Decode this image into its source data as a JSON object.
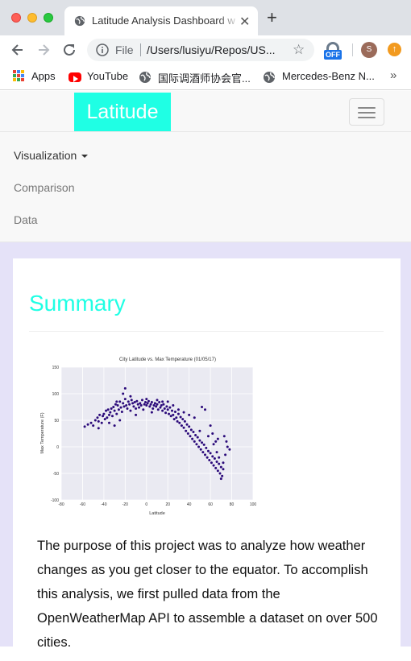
{
  "browser": {
    "tab_title": "Latitude Analysis Dashboard w",
    "url_scheme": "File",
    "url": "/Users/lusiyu/Repos/US...",
    "extension_badge": "OFF",
    "profile_initial": "S",
    "bookmarks": [
      {
        "label": "Apps",
        "icon": "apps-grid-icon"
      },
      {
        "label": "YouTube",
        "icon": "youtube-icon"
      },
      {
        "label": "国际调酒师协会官...",
        "icon": "globe-icon"
      },
      {
        "label": "Mercedes-Benz N...",
        "icon": "globe-icon"
      }
    ],
    "more_bookmarks": "»"
  },
  "navbar": {
    "brand": "Latitude",
    "items": [
      {
        "label": "Visualization",
        "has_dropdown": true
      },
      {
        "label": "Comparison"
      },
      {
        "label": "Data"
      }
    ]
  },
  "main": {
    "heading": "Summary",
    "description": "The purpose of this project was to analyze how weather changes as you get closer to the equator. To accomplish this analysis, we first pulled data from the OpenWeatherMap API to assemble a dataset on over 500 cities."
  },
  "chart_data": {
    "type": "scatter",
    "title": "City Latitude vs. Max Temperature (01/05/17)",
    "xlabel": "Latitude",
    "ylabel": "Max Temperature (F)",
    "xlim": [
      -80,
      100
    ],
    "ylim": [
      -100,
      150
    ],
    "xticks": [
      -80,
      -60,
      -40,
      -20,
      0,
      20,
      40,
      60,
      80,
      100
    ],
    "yticks": [
      -100,
      -50,
      0,
      50,
      100,
      150
    ],
    "grid": true,
    "point_color": "#2b0a7a",
    "plot_background": "#eaeaf2",
    "points_summary": "approximately 540 cities; temperatures near 80°F from -40 to 20 latitude, declining to about -60°F near latitude 70",
    "points": [
      [
        -58,
        38
      ],
      [
        -55,
        42
      ],
      [
        -52,
        45
      ],
      [
        -50,
        40
      ],
      [
        -48,
        50
      ],
      [
        -46,
        55
      ],
      [
        -45,
        48
      ],
      [
        -44,
        60
      ],
      [
        -42,
        45
      ],
      [
        -41,
        58
      ],
      [
        -40,
        62
      ],
      [
        -39,
        52
      ],
      [
        -38,
        68
      ],
      [
        -37,
        55
      ],
      [
        -36,
        70
      ],
      [
        -35,
        60
      ],
      [
        -34,
        65
      ],
      [
        -33,
        72
      ],
      [
        -32,
        58
      ],
      [
        -31,
        75
      ],
      [
        -30,
        68
      ],
      [
        -29,
        80
      ],
      [
        -28,
        62
      ],
      [
        -27,
        78
      ],
      [
        -26,
        70
      ],
      [
        -25,
        85
      ],
      [
        -24,
        74
      ],
      [
        -23,
        66
      ],
      [
        -22,
        82
      ],
      [
        -21,
        76
      ],
      [
        -20,
        90
      ],
      [
        -20,
        110
      ],
      [
        -19,
        78
      ],
      [
        -18,
        72
      ],
      [
        -17,
        85
      ],
      [
        -16,
        80
      ],
      [
        -15,
        68
      ],
      [
        -14,
        88
      ],
      [
        -13,
        82
      ],
      [
        -12,
        76
      ],
      [
        -11,
        84
      ],
      [
        -10,
        72
      ],
      [
        -9,
        86
      ],
      [
        -8,
        80
      ],
      [
        -7,
        74
      ],
      [
        -6,
        82
      ],
      [
        -5,
        78
      ],
      [
        -4,
        88
      ],
      [
        -3,
        70
      ],
      [
        -2,
        80
      ],
      [
        -1,
        84
      ],
      [
        0,
        78
      ],
      [
        1,
        82
      ],
      [
        2,
        86
      ],
      [
        3,
        76
      ],
      [
        4,
        80
      ],
      [
        5,
        84
      ],
      [
        6,
        72
      ],
      [
        7,
        78
      ],
      [
        8,
        82
      ],
      [
        9,
        76
      ],
      [
        10,
        80
      ],
      [
        11,
        70
      ],
      [
        12,
        84
      ],
      [
        13,
        74
      ],
      [
        14,
        78
      ],
      [
        15,
        68
      ],
      [
        16,
        80
      ],
      [
        17,
        72
      ],
      [
        18,
        64
      ],
      [
        19,
        76
      ],
      [
        20,
        70
      ],
      [
        21,
        62
      ],
      [
        22,
        74
      ],
      [
        23,
        58
      ],
      [
        24,
        68
      ],
      [
        25,
        60
      ],
      [
        26,
        52
      ],
      [
        27,
        66
      ],
      [
        28,
        55
      ],
      [
        29,
        48
      ],
      [
        30,
        62
      ],
      [
        31,
        45
      ],
      [
        32,
        56
      ],
      [
        33,
        40
      ],
      [
        34,
        52
      ],
      [
        35,
        36
      ],
      [
        36,
        48
      ],
      [
        37,
        30
      ],
      [
        38,
        42
      ],
      [
        39,
        25
      ],
      [
        40,
        38
      ],
      [
        41,
        20
      ],
      [
        42,
        32
      ],
      [
        43,
        15
      ],
      [
        44,
        28
      ],
      [
        45,
        10
      ],
      [
        46,
        22
      ],
      [
        47,
        5
      ],
      [
        48,
        18
      ],
      [
        49,
        0
      ],
      [
        50,
        12
      ],
      [
        51,
        -5
      ],
      [
        52,
        8
      ],
      [
        53,
        -10
      ],
      [
        54,
        4
      ],
      [
        55,
        -15
      ],
      [
        56,
        -2
      ],
      [
        57,
        -20
      ],
      [
        58,
        -8
      ],
      [
        59,
        -25
      ],
      [
        60,
        -12
      ],
      [
        61,
        -30
      ],
      [
        62,
        -18
      ],
      [
        63,
        -35
      ],
      [
        64,
        -22
      ],
      [
        65,
        -40
      ],
      [
        66,
        -28
      ],
      [
        67,
        -45
      ],
      [
        68,
        -32
      ],
      [
        69,
        -50
      ],
      [
        70,
        -38
      ],
      [
        71,
        -55
      ],
      [
        72,
        -42
      ],
      [
        70,
        -60
      ],
      [
        60,
        40
      ],
      [
        62,
        25
      ],
      [
        65,
        10
      ],
      [
        55,
        70
      ],
      [
        52,
        75
      ],
      [
        45,
        55
      ],
      [
        40,
        60
      ],
      [
        35,
        65
      ],
      [
        -30,
        40
      ],
      [
        -25,
        50
      ],
      [
        -10,
        60
      ],
      [
        5,
        65
      ],
      [
        15,
        85
      ],
      [
        25,
        78
      ],
      [
        30,
        70
      ],
      [
        -45,
        35
      ],
      [
        -35,
        45
      ],
      [
        20,
        85
      ],
      [
        10,
        88
      ],
      [
        0,
        90
      ],
      [
        -15,
        95
      ],
      [
        -22,
        100
      ],
      [
        -28,
        85
      ],
      [
        50,
        30
      ],
      [
        58,
        20
      ],
      [
        63,
        5
      ],
      [
        66,
        -10
      ],
      [
        68,
        -20
      ],
      [
        72,
        -30
      ],
      [
        74,
        -15
      ],
      [
        76,
        0
      ],
      [
        78,
        -5
      ],
      [
        75,
        10
      ],
      [
        73,
        20
      ],
      [
        67,
        15
      ]
    ]
  }
}
